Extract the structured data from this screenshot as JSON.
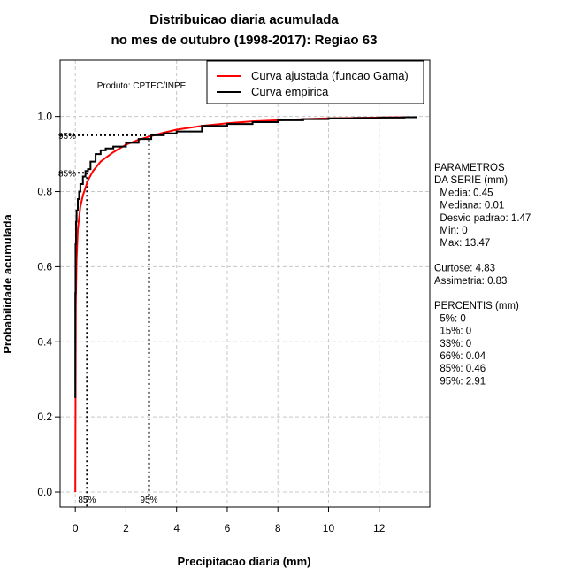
{
  "chart_data": {
    "type": "line",
    "title_line1": "Distribuicao diaria acumulada",
    "title_line2": "no mes de outubro (1998-2017): Regiao 63",
    "xlabel": "Precipitacao diaria (mm)",
    "ylabel": "Probabilidade acumulada",
    "xlim": [
      -0.6,
      14.0
    ],
    "ylim": [
      -0.04,
      1.15
    ],
    "x_ticks": [
      0,
      2,
      4,
      6,
      8,
      10,
      12
    ],
    "x_tick_labels": [
      "0",
      "2",
      "4",
      "6",
      "8",
      "10",
      "12"
    ],
    "y_ticks": [
      0.0,
      0.2,
      0.4,
      0.6,
      0.8,
      1.0
    ],
    "y_tick_labels": [
      "0.0",
      "0.2",
      "0.4",
      "0.6",
      "0.8",
      "1.0"
    ],
    "grid_x": [
      0,
      2,
      4,
      6,
      8,
      10,
      12
    ],
    "grid_y": [
      0.0,
      0.2,
      0.4,
      0.6,
      0.8,
      1.0
    ],
    "product_label": "Produto: CPTEC/INPE",
    "legend": {
      "placement": "top-right",
      "entries": [
        {
          "label": "Curva ajustada (funcao Gama)",
          "color": "#ff0000"
        },
        {
          "label": "Curva empirica",
          "color": "#000000"
        }
      ]
    },
    "series": [
      {
        "name": "Curva ajustada (funcao Gama)",
        "color": "#ff0000",
        "x": [
          0,
          0.02,
          0.05,
          0.1,
          0.2,
          0.3,
          0.5,
          0.7,
          1.0,
          1.5,
          2.0,
          2.5,
          3.0,
          3.5,
          4.0,
          5.0,
          6.0,
          7.0,
          8.0,
          9.0,
          10.0,
          11.0,
          12.0,
          13.0,
          13.47
        ],
        "values": [
          0.0,
          0.5,
          0.62,
          0.7,
          0.76,
          0.79,
          0.83,
          0.855,
          0.88,
          0.905,
          0.925,
          0.938,
          0.948,
          0.957,
          0.965,
          0.975,
          0.982,
          0.987,
          0.99,
          0.993,
          0.995,
          0.996,
          0.997,
          0.998,
          0.998
        ]
      },
      {
        "name": "Curva empirica",
        "color": "#000000",
        "x": [
          0,
          0,
          0.01,
          0.03,
          0.05,
          0.1,
          0.15,
          0.2,
          0.3,
          0.4,
          0.5,
          0.6,
          0.8,
          1.0,
          1.2,
          1.5,
          2.0,
          2.5,
          3.0,
          3.5,
          4.0,
          5.0,
          6.0,
          7.0,
          8.0,
          9.0,
          10.0,
          11.0,
          12.0,
          13.0,
          13.47
        ],
        "values": [
          0.25,
          0.53,
          0.66,
          0.72,
          0.75,
          0.78,
          0.8,
          0.82,
          0.84,
          0.855,
          0.86,
          0.88,
          0.9,
          0.91,
          0.915,
          0.92,
          0.93,
          0.94,
          0.95,
          0.955,
          0.96,
          0.975,
          0.98,
          0.985,
          0.99,
          0.993,
          0.995,
          0.996,
          0.997,
          0.998,
          1.0
        ]
      }
    ],
    "percentile_markers": [
      {
        "label": "85%",
        "x": 0.46,
        "y": 0.85
      },
      {
        "label": "95%",
        "x": 2.91,
        "y": 0.95
      }
    ]
  },
  "parameters": {
    "block1": [
      "PARAMETROS",
      "DA SERIE (mm)",
      "  Media: 0.45",
      "  Mediana: 0.01",
      "  Desvio padrao: 1.47",
      "  Min: 0",
      "  Max: 13.47"
    ],
    "block2": [
      "Curtose: 4.83",
      "Assimetria: 0.83"
    ],
    "block3": [
      "PERCENTIS (mm)",
      "  5%: 0",
      "  15%: 0",
      "  33%: 0",
      "  66%: 0.04",
      "  85%: 0.46",
      "  95%: 2.91"
    ]
  }
}
